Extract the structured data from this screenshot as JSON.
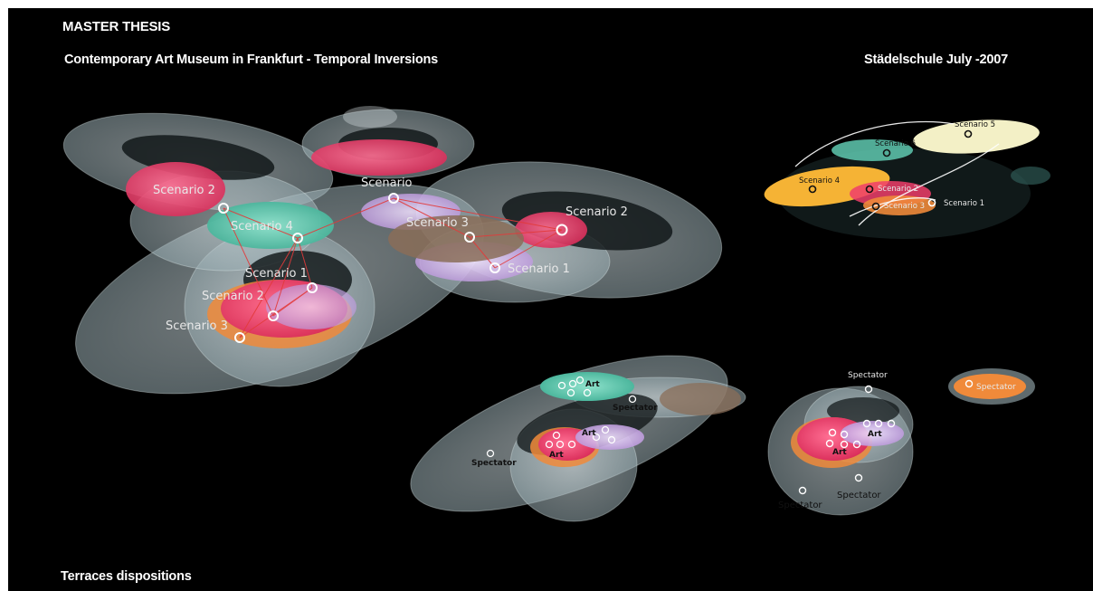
{
  "header": {
    "title": "MASTER THESIS",
    "subtitle": "Contemporary Art Museum in Frankfurt - Temporal Inversions",
    "school_date": "Städelschule July -2007",
    "bottom_caption": "Terraces dispositions"
  },
  "main_model": {
    "labels": {
      "scenario_2_left": "Scenario 2",
      "scenario_4": "Scenario 4",
      "scenario_top": "Scenario",
      "scenario_3_center": "Scenario 3",
      "scenario_2_right": "Scenario 2",
      "scenario_1_right": "Scenario 1",
      "scenario_1_lower": "Scenario 1",
      "scenario_2_lower": "Scenario 2",
      "scenario_3_lower": "Scenario 3"
    }
  },
  "inset_model": {
    "labels": {
      "scenario_5": "Scenario 5",
      "scenario_6": "Scenario 6",
      "scenario_4": "Scenario 4",
      "scenario_2": "Scenario 2",
      "scenario_3": "Scenario 3",
      "scenario_1": "Scenario 1"
    }
  },
  "terrace_left": {
    "labels": {
      "art_top": "Art",
      "art_middle": "Art",
      "art_lower": "Art",
      "spectator_right": "Spectator",
      "spectator_left": "Spectator"
    }
  },
  "terrace_right": {
    "labels": {
      "spectator_top": "Spectator",
      "spectator_orange": "Spectator",
      "art_upper": "Art",
      "art_lower": "Art",
      "spectator_bottom_left": "Spectator",
      "spectator_bottom_right": "Spectator"
    }
  },
  "colors": {
    "background": "#000000",
    "shell": "#9fb3b8",
    "teal": "#5fc9b0",
    "pink": "#ee3d6a",
    "lavender": "#c9a8e8",
    "orange": "#f08a3a",
    "yellow": "#f5b335",
    "cream": "#f3f0c6",
    "brown": "#8a6d58"
  }
}
